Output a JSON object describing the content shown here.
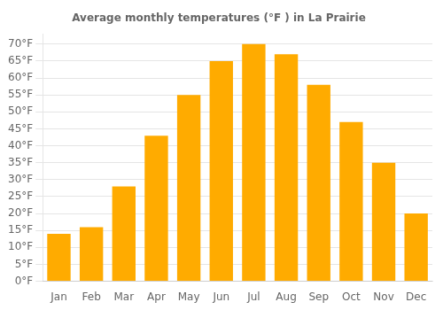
{
  "chart_data": {
    "type": "bar",
    "title": "Average monthly temperatures (°F ) in La Prairie",
    "categories": [
      "Jan",
      "Feb",
      "Mar",
      "Apr",
      "May",
      "Jun",
      "Jul",
      "Aug",
      "Sep",
      "Oct",
      "Nov",
      "Dec"
    ],
    "values": [
      14,
      16,
      28,
      43,
      55,
      65,
      70,
      67,
      58,
      47,
      35,
      20
    ],
    "color": "#FFAB00",
    "ylim": [
      0,
      73
    ],
    "yticks": [
      {
        "value": 0,
        "label": "0°F"
      },
      {
        "value": 5,
        "label": "5°F"
      },
      {
        "value": 10,
        "label": "10°F"
      },
      {
        "value": 15,
        "label": "15°F"
      },
      {
        "value": 20,
        "label": "20°F"
      },
      {
        "value": 25,
        "label": "25°F"
      },
      {
        "value": 30,
        "label": "30°F"
      },
      {
        "value": 35,
        "label": "35°F"
      },
      {
        "value": 40,
        "label": "40°F"
      },
      {
        "value": 45,
        "label": "45°F"
      },
      {
        "value": 50,
        "label": "50°F"
      },
      {
        "value": 55,
        "label": "55°F"
      },
      {
        "value": 60,
        "label": "60°F"
      },
      {
        "value": 65,
        "label": "65°F"
      },
      {
        "value": 70,
        "label": "70°F"
      }
    ],
    "grid": true
  }
}
